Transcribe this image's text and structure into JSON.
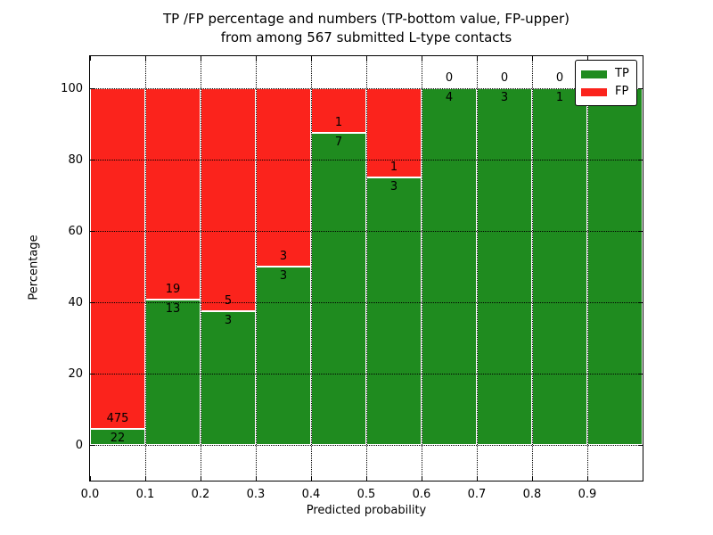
{
  "figure": {
    "title_line1": "TP /FP percentage and numbers (TP-bottom value, FP-upper)",
    "title_line2": "from among 567 submitted L-type contacts",
    "xlabel": "Predicted probability",
    "ylabel": "Percentage"
  },
  "chart_data": {
    "type": "bar",
    "stacked": true,
    "normalized_to_100": true,
    "title": "TP /FP percentage and numbers (TP-bottom value, FP-upper) from among 567 submitted L-type contacts",
    "xlabel": "Predicted probability",
    "ylabel": "Percentage",
    "total_submitted": 567,
    "bin_edges": [
      0.0,
      0.1,
      0.2,
      0.3,
      0.4,
      0.5,
      0.6,
      0.7,
      0.8,
      0.9,
      1.0
    ],
    "series": [
      {
        "name": "TP",
        "color": "#1f8b1f",
        "counts": [
          22,
          13,
          3,
          3,
          7,
          3,
          4,
          3,
          1,
          4
        ],
        "pct_of_bin": [
          4.43,
          40.63,
          37.5,
          50.0,
          87.5,
          75.0,
          100.0,
          100.0,
          100.0,
          100.0
        ]
      },
      {
        "name": "FP",
        "color": "#fb231c",
        "counts": [
          475,
          19,
          5,
          3,
          1,
          1,
          0,
          0,
          0,
          0
        ],
        "pct_of_bin": [
          95.57,
          59.37,
          62.5,
          50.0,
          12.5,
          25.0,
          0.0,
          0.0,
          0.0,
          0.0
        ]
      }
    ],
    "bar_edge_color": "#ffffff",
    "xtick_labels": [
      "0.0",
      "0.1",
      "0.2",
      "0.3",
      "0.4",
      "0.5",
      "0.6",
      "0.7",
      "0.8",
      "0.9"
    ],
    "yticks": [
      0,
      20,
      40,
      60,
      80,
      100
    ],
    "xlim": [
      0.0,
      1.0
    ],
    "ylim": [
      -10,
      109
    ],
    "grid": {
      "on": true,
      "style": "dotted",
      "color": "#000000"
    },
    "legend": {
      "position": "upper right",
      "entries": [
        "TP",
        "FP"
      ]
    }
  }
}
